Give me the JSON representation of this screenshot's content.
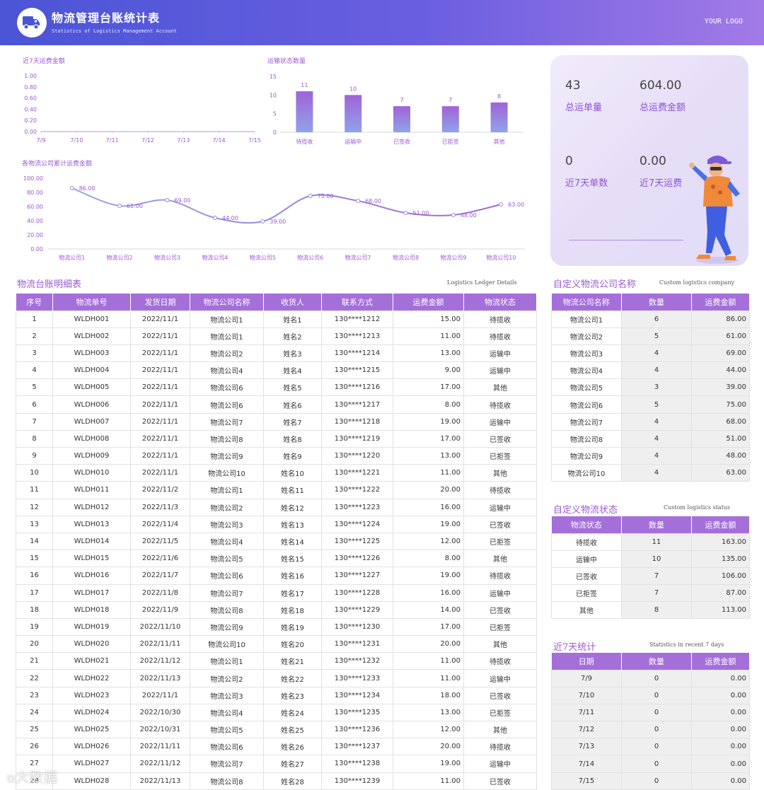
{
  "header": {
    "title": "物流管理台账统计表",
    "subtitle": "Statistics of Logistics Management Account",
    "logo": "YOUR LOGO",
    "icon": "truck-icon"
  },
  "charts_text": {
    "c1_title": "近7天运费金额",
    "c2_title": "运输状态数量",
    "c3_title": "各物流公司累计运费金额"
  },
  "chart_data": [
    {
      "type": "line",
      "title": "近7天运费金额",
      "x": [
        "7/9",
        "7/10",
        "7/11",
        "7/12",
        "7/13",
        "7/14",
        "7/15"
      ],
      "values": [
        0,
        0,
        0,
        0,
        0,
        0,
        0
      ],
      "ylim": [
        0,
        1
      ],
      "yticks": [
        "1.00",
        "0.80",
        "0.60",
        "0.40",
        "0.20",
        "0.00"
      ]
    },
    {
      "type": "bar",
      "title": "运输状态数量",
      "categories": [
        "待揽收",
        "运输中",
        "已签收",
        "已拒签",
        "其他"
      ],
      "values": [
        11,
        10,
        7,
        7,
        8
      ],
      "ylim": [
        0,
        15
      ],
      "yticks": [
        "15",
        "10",
        "5",
        "0"
      ]
    },
    {
      "type": "line",
      "title": "各物流公司累计运费金额",
      "x": [
        "物流公司1",
        "物流公司2",
        "物流公司3",
        "物流公司4",
        "物流公司5",
        "物流公司6",
        "物流公司7",
        "物流公司8",
        "物流公司9",
        "物流公司10"
      ],
      "values": [
        86,
        61,
        69,
        44,
        39,
        75,
        68,
        51,
        48,
        63
      ],
      "labels": [
        "86.00",
        "61.00",
        "69.00",
        "44.00",
        "39.00",
        "75.00",
        "68.00",
        "51.00",
        "48.00",
        "63.00"
      ],
      "ylim": [
        0,
        100
      ],
      "yticks": [
        "100.00",
        "80.00",
        "60.00",
        "40.00",
        "20.00",
        "0.00"
      ]
    }
  ],
  "kpi": {
    "total_orders_value": "43",
    "total_orders_label": "总运单量",
    "total_amount_value": "604.00",
    "total_amount_label": "总运费金额",
    "week_orders_value": "0",
    "week_orders_label": "近7天单数",
    "week_amount_value": "0.00",
    "week_amount_label": "近7天运费"
  },
  "ledger": {
    "title": "物流台账明细表",
    "subtitle": "Logistics Ledger Details",
    "headers": [
      "序号",
      "物流单号",
      "发货日期",
      "物流公司名称",
      "收货人",
      "联系方式",
      "运费金额",
      "物流状态"
    ],
    "rows": [
      [
        "1",
        "WLDH001",
        "2022/11/1",
        "物流公司1",
        "姓名1",
        "130****1212",
        "15.00",
        "待揽收"
      ],
      [
        "2",
        "WLDH002",
        "2022/11/1",
        "物流公司1",
        "姓名2",
        "130****1213",
        "11.00",
        "待揽收"
      ],
      [
        "3",
        "WLDH003",
        "2022/11/1",
        "物流公司2",
        "姓名3",
        "130****1214",
        "13.00",
        "运输中"
      ],
      [
        "4",
        "WLDH004",
        "2022/11/1",
        "物流公司4",
        "姓名4",
        "130****1215",
        "9.00",
        "运输中"
      ],
      [
        "5",
        "WLDH005",
        "2022/11/1",
        "物流公司6",
        "姓名5",
        "130****1216",
        "17.00",
        "其他"
      ],
      [
        "6",
        "WLDH006",
        "2022/11/1",
        "物流公司6",
        "姓名6",
        "130****1217",
        "8.00",
        "待揽收"
      ],
      [
        "7",
        "WLDH007",
        "2022/11/1",
        "物流公司7",
        "姓名7",
        "130****1218",
        "19.00",
        "运输中"
      ],
      [
        "8",
        "WLDH008",
        "2022/11/1",
        "物流公司8",
        "姓名8",
        "130****1219",
        "17.00",
        "已签收"
      ],
      [
        "9",
        "WLDH009",
        "2022/11/1",
        "物流公司9",
        "姓名9",
        "130****1220",
        "13.00",
        "已拒签"
      ],
      [
        "10",
        "WLDH010",
        "2022/11/1",
        "物流公司10",
        "姓名10",
        "130****1221",
        "11.00",
        "其他"
      ],
      [
        "11",
        "WLDH011",
        "2022/11/2",
        "物流公司1",
        "姓名11",
        "130****1222",
        "20.00",
        "待揽收"
      ],
      [
        "12",
        "WLDH012",
        "2022/11/3",
        "物流公司2",
        "姓名12",
        "130****1223",
        "16.00",
        "运输中"
      ],
      [
        "13",
        "WLDH013",
        "2022/11/4",
        "物流公司3",
        "姓名13",
        "130****1224",
        "19.00",
        "已签收"
      ],
      [
        "14",
        "WLDH014",
        "2022/11/5",
        "物流公司4",
        "姓名14",
        "130****1225",
        "12.00",
        "已拒签"
      ],
      [
        "15",
        "WLDH015",
        "2022/11/6",
        "物流公司5",
        "姓名15",
        "130****1226",
        "8.00",
        "其他"
      ],
      [
        "16",
        "WLDH016",
        "2022/11/7",
        "物流公司6",
        "姓名16",
        "130****1227",
        "19.00",
        "待揽收"
      ],
      [
        "17",
        "WLDH017",
        "2022/11/8",
        "物流公司7",
        "姓名17",
        "130****1228",
        "16.00",
        "运输中"
      ],
      [
        "18",
        "WLDH018",
        "2022/11/9",
        "物流公司8",
        "姓名18",
        "130****1229",
        "14.00",
        "已签收"
      ],
      [
        "19",
        "WLDH019",
        "2022/11/10",
        "物流公司9",
        "姓名19",
        "130****1230",
        "17.00",
        "已拒签"
      ],
      [
        "20",
        "WLDH020",
        "2022/11/11",
        "物流公司10",
        "姓名20",
        "130****1231",
        "20.00",
        "其他"
      ],
      [
        "21",
        "WLDH021",
        "2022/11/12",
        "物流公司1",
        "姓名21",
        "130****1232",
        "11.00",
        "待揽收"
      ],
      [
        "22",
        "WLDH022",
        "2022/11/13",
        "物流公司2",
        "姓名22",
        "130****1233",
        "11.00",
        "运输中"
      ],
      [
        "23",
        "WLDH023",
        "2022/11/1",
        "物流公司3",
        "姓名23",
        "130****1234",
        "18.00",
        "已签收"
      ],
      [
        "24",
        "WLDH024",
        "2022/10/30",
        "物流公司4",
        "姓名24",
        "130****1235",
        "13.00",
        "已拒签"
      ],
      [
        "25",
        "WLDH025",
        "2022/10/31",
        "物流公司5",
        "姓名25",
        "130****1236",
        "12.00",
        "其他"
      ],
      [
        "26",
        "WLDH026",
        "2022/11/11",
        "物流公司6",
        "姓名26",
        "130****1237",
        "20.00",
        "待揽收"
      ],
      [
        "27",
        "WLDH027",
        "2022/11/12",
        "物流公司7",
        "姓名27",
        "130****1238",
        "19.00",
        "运输中"
      ],
      [
        "28",
        "WLDH028",
        "2022/11/13",
        "物流公司8",
        "姓名28",
        "130****1239",
        "11.00",
        "已签收"
      ]
    ]
  },
  "company_table": {
    "title": "自定义物流公司名称",
    "subtitle": "Custom logistics company",
    "headers": [
      "物流公司名称",
      "数量",
      "运费金额"
    ],
    "rows": [
      [
        "物流公司1",
        "6",
        "86.00"
      ],
      [
        "物流公司2",
        "5",
        "61.00"
      ],
      [
        "物流公司3",
        "4",
        "69.00"
      ],
      [
        "物流公司4",
        "4",
        "44.00"
      ],
      [
        "物流公司5",
        "3",
        "39.00"
      ],
      [
        "物流公司6",
        "5",
        "75.00"
      ],
      [
        "物流公司7",
        "4",
        "68.00"
      ],
      [
        "物流公司8",
        "4",
        "51.00"
      ],
      [
        "物流公司9",
        "4",
        "48.00"
      ],
      [
        "物流公司10",
        "4",
        "63.00"
      ]
    ]
  },
  "status_table": {
    "title": "自定义物流状态",
    "subtitle": "Custom logistics status",
    "headers": [
      "物流状态",
      "数量",
      "运费金额"
    ],
    "rows": [
      [
        "待揽收",
        "11",
        "163.00"
      ],
      [
        "运输中",
        "10",
        "135.00"
      ],
      [
        "已签收",
        "7",
        "106.00"
      ],
      [
        "已拒签",
        "7",
        "87.00"
      ],
      [
        "其他",
        "8",
        "113.00"
      ]
    ]
  },
  "week_table": {
    "title": "近7天统计",
    "subtitle": "Statistics in recent 7 days",
    "headers": [
      "日期",
      "数量",
      "运费金额"
    ],
    "rows": [
      [
        "7/9",
        "0",
        "0.00"
      ],
      [
        "7/10",
        "0",
        "0.00"
      ],
      [
        "7/11",
        "0",
        "0.00"
      ],
      [
        "7/12",
        "0",
        "0.00"
      ],
      [
        "7/13",
        "0",
        "0.00"
      ],
      [
        "7/14",
        "0",
        "0.00"
      ],
      [
        "7/15",
        "0",
        "0.00"
      ]
    ]
  },
  "watermark": "大数据",
  "colors": {
    "accent": "#a56fda",
    "header_start": "#4a55d6",
    "header_end": "#a27ae6",
    "line": "#9b8ad8"
  }
}
